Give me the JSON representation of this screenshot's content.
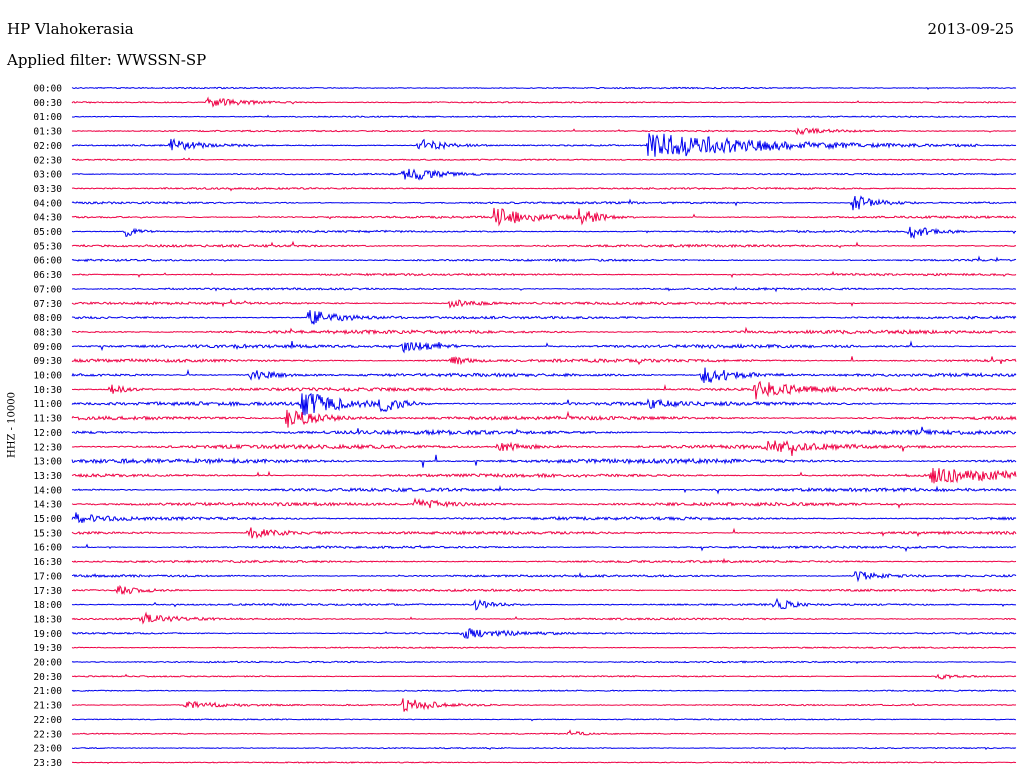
{
  "header": {
    "station": "HP Vlahokerasia",
    "date": "2013-09-25",
    "filter": "Applied filter: WWSSN-SP",
    "channel_label": "HHZ - 10000"
  },
  "colors": {
    "even_row": "#0000ee",
    "odd_row": "#ee0044"
  },
  "chart_data": {
    "type": "line",
    "title": "HP Vlahokerasia",
    "ylabel": "HHZ - 10000",
    "rows": [
      "00:00",
      "00:30",
      "01:00",
      "01:30",
      "02:00",
      "02:30",
      "03:00",
      "03:30",
      "04:00",
      "04:30",
      "05:00",
      "05:30",
      "06:00",
      "06:30",
      "07:00",
      "07:30",
      "08:00",
      "08:30",
      "09:00",
      "09:30",
      "10:00",
      "10:30",
      "11:00",
      "11:30",
      "12:00",
      "12:30",
      "13:00",
      "13:30",
      "14:00",
      "14:30",
      "15:00",
      "15:30",
      "16:00",
      "16:30",
      "17:00",
      "17:30",
      "18:00",
      "18:30",
      "19:00",
      "19:30",
      "20:00",
      "20:30",
      "21:00",
      "21:30",
      "22:00",
      "22:30",
      "23:00",
      "23:30"
    ],
    "row_minutes": 30,
    "noise_level": [
      0.4,
      0.4,
      0.4,
      0.5,
      0.5,
      0.4,
      0.5,
      0.6,
      0.8,
      0.8,
      0.8,
      1.0,
      0.8,
      0.8,
      0.8,
      1.0,
      1.0,
      1.6,
      1.4,
      1.4,
      1.4,
      1.4,
      1.6,
      1.6,
      1.8,
      1.8,
      2.0,
      1.4,
      1.4,
      1.4,
      1.4,
      1.2,
      0.9,
      0.9,
      0.9,
      0.9,
      0.7,
      0.7,
      0.6,
      0.4,
      0.5,
      0.4,
      0.4,
      0.4,
      0.3,
      0.3,
      0.3,
      0.3
    ],
    "events": [
      {
        "row": 1,
        "minute": 4.3,
        "amp": 5,
        "dur": 1.2
      },
      {
        "row": 3,
        "minute": 23.0,
        "amp": 3,
        "dur": 1.0
      },
      {
        "row": 4,
        "minute": 3.1,
        "amp": 6,
        "dur": 1.0
      },
      {
        "row": 4,
        "minute": 11.0,
        "amp": 7,
        "dur": 0.8
      },
      {
        "row": 4,
        "minute": 18.3,
        "amp": 14,
        "dur": 3.5
      },
      {
        "row": 6,
        "minute": 10.5,
        "amp": 8,
        "dur": 1.0
      },
      {
        "row": 8,
        "minute": 24.8,
        "amp": 9,
        "dur": 0.7
      },
      {
        "row": 9,
        "minute": 13.4,
        "amp": 9,
        "dur": 1.2
      },
      {
        "row": 9,
        "minute": 16.1,
        "amp": 8,
        "dur": 0.6
      },
      {
        "row": 10,
        "minute": 1.7,
        "amp": 5,
        "dur": 0.4
      },
      {
        "row": 10,
        "minute": 26.6,
        "amp": 7,
        "dur": 0.6
      },
      {
        "row": 15,
        "minute": 12.0,
        "amp": 4,
        "dur": 0.8
      },
      {
        "row": 16,
        "minute": 7.5,
        "amp": 8,
        "dur": 1.0
      },
      {
        "row": 18,
        "minute": 10.5,
        "amp": 6,
        "dur": 1.0
      },
      {
        "row": 19,
        "minute": 12.0,
        "amp": 5,
        "dur": 0.5
      },
      {
        "row": 20,
        "minute": 5.6,
        "amp": 6,
        "dur": 0.8
      },
      {
        "row": 20,
        "minute": 20.0,
        "amp": 10,
        "dur": 1.0
      },
      {
        "row": 21,
        "minute": 1.2,
        "amp": 5,
        "dur": 0.5
      },
      {
        "row": 21,
        "minute": 21.7,
        "amp": 9,
        "dur": 1.0
      },
      {
        "row": 22,
        "minute": 7.3,
        "amp": 12,
        "dur": 1.2
      },
      {
        "row": 22,
        "minute": 9.8,
        "amp": 8,
        "dur": 0.6
      },
      {
        "row": 22,
        "minute": 18.3,
        "amp": 4,
        "dur": 0.6
      },
      {
        "row": 23,
        "minute": 6.8,
        "amp": 10,
        "dur": 1.0
      },
      {
        "row": 25,
        "minute": 13.5,
        "amp": 5,
        "dur": 1.0
      },
      {
        "row": 25,
        "minute": 22.1,
        "amp": 6,
        "dur": 1.0
      },
      {
        "row": 27,
        "minute": 27.3,
        "amp": 7,
        "dur": 2.5
      },
      {
        "row": 29,
        "minute": 10.9,
        "amp": 5,
        "dur": 1.2
      },
      {
        "row": 30,
        "minute": 0.1,
        "amp": 5,
        "dur": 0.6
      },
      {
        "row": 31,
        "minute": 5.6,
        "amp": 6,
        "dur": 1.0
      },
      {
        "row": 34,
        "minute": 24.9,
        "amp": 5,
        "dur": 0.8
      },
      {
        "row": 35,
        "minute": 1.4,
        "amp": 5,
        "dur": 0.8
      },
      {
        "row": 36,
        "minute": 12.8,
        "amp": 5,
        "dur": 0.6
      },
      {
        "row": 36,
        "minute": 22.3,
        "amp": 8,
        "dur": 0.4
      },
      {
        "row": 37,
        "minute": 2.2,
        "amp": 6,
        "dur": 0.8
      },
      {
        "row": 38,
        "minute": 12.4,
        "amp": 5,
        "dur": 1.2
      },
      {
        "row": 41,
        "minute": 27.5,
        "amp": 3,
        "dur": 0.6
      },
      {
        "row": 43,
        "minute": 3.6,
        "amp": 4,
        "dur": 1.2
      },
      {
        "row": 43,
        "minute": 10.5,
        "amp": 7,
        "dur": 1.0
      },
      {
        "row": 45,
        "minute": 15.8,
        "amp": 3,
        "dur": 0.4
      }
    ]
  }
}
